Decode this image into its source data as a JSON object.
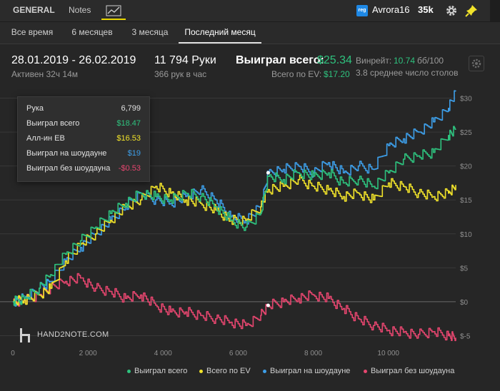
{
  "header": {
    "tabs": {
      "general": "GENERAL",
      "notes": "Notes",
      "graph_icon": "line-chart-icon"
    },
    "badge": "reg",
    "username": "Avrora16",
    "hands": "35k",
    "icons": {
      "settings": "gear-icon",
      "pin": "pin-icon"
    }
  },
  "subtabs": [
    "Все время",
    "6 месяцев",
    "3 месяца",
    "Последний месяц"
  ],
  "stats": {
    "date_range": "28.01.2019 - 26.02.2019",
    "active": "Активен 32ч 14м",
    "hands": "11 794 Руки",
    "hands_rate": "366 рук в час",
    "won_label": "Выиграл всего:",
    "won_value": "$25.34",
    "ev_label": "Всего по EV:",
    "ev_value": "$17.20",
    "winrate_label": "Винрейт:",
    "winrate_value": "10.74",
    "winrate_unit": "бб/100",
    "tables": "3.8 среднее число столов"
  },
  "tooltip": {
    "rows": [
      {
        "label": "Рука",
        "value": "6,799",
        "color": "#e0e0e0"
      },
      {
        "label": "Выиграл всего",
        "value": "$18.47",
        "color": "#2ec27e"
      },
      {
        "label": "Алл-ин ЕВ",
        "value": "$16.53",
        "color": "#f1e32a"
      },
      {
        "label": "Выиграл на шоудауне",
        "value": "$19",
        "color": "#3d9ee8"
      },
      {
        "label": "Выиграл без шоудауна",
        "value": "-$0.53",
        "color": "#e6466f"
      }
    ]
  },
  "logo": "HAND2NOTE.COM",
  "legend": [
    {
      "label": "Выиграл всего",
      "color": "#2ec27e"
    },
    {
      "label": "Всего по EV",
      "color": "#f1e32a"
    },
    {
      "label": "Выиграл на шоудауне",
      "color": "#3d9ee8"
    },
    {
      "label": "Выиграл без шоудауна",
      "color": "#e6466f"
    }
  ],
  "chart_data": {
    "type": "line",
    "x_ticks": [
      0,
      2000,
      4000,
      6000,
      8000,
      10000
    ],
    "x_tick_labels": [
      "0",
      "2 000",
      "4 000",
      "6 000",
      "8 000",
      "10 000"
    ],
    "y_ticks": [
      -5,
      0,
      5,
      10,
      15,
      20,
      25,
      30
    ],
    "y_tick_labels": [
      "$-5",
      "$0",
      "$5",
      "$10",
      "$15",
      "$20",
      "$25",
      "$30"
    ],
    "xlim": [
      0,
      11794
    ],
    "ylim": [
      -6,
      31
    ],
    "highlight_x": 6799,
    "series": [
      {
        "name": "Выиграл всего",
        "color": "#2ec27e",
        "x": [
          0,
          300,
          700,
          1000,
          1400,
          1800,
          2200,
          2600,
          3000,
          3400,
          3800,
          4200,
          4600,
          5000,
          5400,
          5800,
          6200,
          6600,
          6799,
          7200,
          7600,
          8000,
          8400,
          8800,
          9200,
          9600,
          10000,
          10400,
          10800,
          11200,
          11600,
          11794
        ],
        "y": [
          0,
          0.5,
          2,
          4,
          7,
          9,
          11,
          13,
          14.5,
          16,
          15.5,
          15,
          16,
          15.5,
          14,
          12,
          11,
          13,
          18.47,
          18,
          19,
          18.5,
          19,
          17.5,
          18,
          17,
          19,
          21,
          21.5,
          22,
          24.5,
          25.34
        ]
      },
      {
        "name": "Всего по EV",
        "color": "#f1e32a",
        "x": [
          0,
          300,
          700,
          1000,
          1400,
          1800,
          2200,
          2600,
          3000,
          3400,
          3800,
          4200,
          4600,
          5000,
          5400,
          5800,
          6200,
          6600,
          6799,
          7200,
          7600,
          8000,
          8400,
          8800,
          9200,
          9600,
          10000,
          10400,
          10800,
          11200,
          11600,
          11794
        ],
        "y": [
          0,
          0.3,
          1,
          2,
          6,
          8.5,
          10,
          12,
          14,
          15,
          17,
          16,
          15,
          14.5,
          13.5,
          12,
          12,
          14,
          16.53,
          17,
          18,
          17,
          16.5,
          15.5,
          16,
          15,
          17.5,
          17,
          16,
          15.5,
          16,
          17.2
        ]
      },
      {
        "name": "Выиграл на шоудауне",
        "color": "#3d9ee8",
        "x": [
          0,
          300,
          700,
          1000,
          1400,
          1800,
          2200,
          2600,
          3000,
          3400,
          3800,
          4200,
          4600,
          5000,
          5400,
          5800,
          6200,
          6600,
          6799,
          7200,
          7600,
          8000,
          8400,
          8800,
          9200,
          9600,
          10000,
          10400,
          10800,
          11200,
          11600,
          11794
        ],
        "y": [
          0,
          0.5,
          2,
          3,
          6,
          8,
          10,
          12,
          14,
          16,
          15,
          14.5,
          15.5,
          16.5,
          15,
          12.5,
          12,
          14,
          19,
          19.5,
          20,
          19,
          20.5,
          19,
          20,
          19.5,
          23,
          24,
          25,
          26.5,
          28.5,
          31
        ]
      },
      {
        "name": "Выиграл без шоудауна",
        "color": "#e6466f",
        "x": [
          0,
          300,
          700,
          1000,
          1400,
          1800,
          2200,
          2600,
          3000,
          3400,
          3800,
          4200,
          4600,
          5000,
          5400,
          5800,
          6200,
          6600,
          6799,
          7200,
          7600,
          8000,
          8400,
          8800,
          9200,
          9600,
          10000,
          10400,
          10800,
          11200,
          11600,
          11794
        ],
        "y": [
          0,
          0.2,
          1,
          2,
          3,
          3.5,
          2,
          1.5,
          0.5,
          1,
          -0.5,
          -1.5,
          -1.5,
          -2,
          -2.5,
          -3,
          -3.5,
          -2,
          -0.53,
          0,
          0.5,
          1,
          0.5,
          -1,
          -2.5,
          -3.5,
          -4.2,
          -4.5,
          -4.8,
          -4.4,
          -5,
          -5.3
        ]
      }
    ]
  }
}
